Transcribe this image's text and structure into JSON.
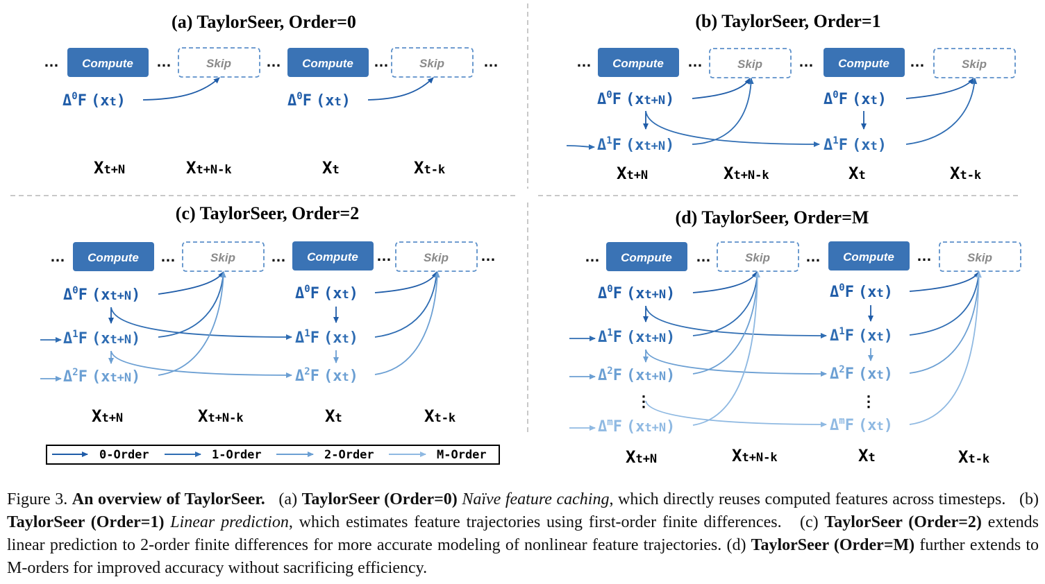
{
  "panels": {
    "a": {
      "title": "(a) TaylorSeer, Order=0"
    },
    "b": {
      "title": "(b) TaylorSeer, Order=1"
    },
    "c": {
      "title": "(c) TaylorSeer, Order=2"
    },
    "d": {
      "title": "(d) TaylorSeer, Order=M"
    }
  },
  "buttons": {
    "compute": "Compute",
    "skip": "Skip"
  },
  "dots": "…",
  "vdots": "⋮",
  "delta": {
    "sym": "Δ",
    "F": "F",
    "x": "x",
    "lp": "(",
    "rp": ")",
    "o0": "0",
    "o1": "1",
    "o2": "2",
    "om": "m",
    "sub_tN": "t+N",
    "sub_t": "t"
  },
  "timesteps": {
    "x": "X",
    "t_N": "t+N",
    "t_N_k": "t+N-k",
    "t": "t",
    "t_k": "t-k"
  },
  "legend": [
    "0-Order",
    "1-Order",
    "2-Order",
    "M-Order"
  ],
  "colors": {
    "order0": "#1f5ca8",
    "order1": "#2f6db3",
    "order2": "#6b9fd3",
    "orderM": "#8fb9e2",
    "compute_fill": "#3a73b5"
  },
  "caption": {
    "fig": "Figure 3.",
    "heading": "An overview of TaylorSeer.",
    "a_label": "(a)",
    "a_bold": "TaylorSeer (Order=0)",
    "a_ital": "Naïve feature caching",
    "a_text": ", which directly reuses computed features across timesteps.",
    "b_label": "(b)",
    "b_bold": "TaylorSeer (Order=1)",
    "b_ital": "Linear prediction",
    "b_text": ", which estimates feature trajectories using first-order finite differences.",
    "c_label": "(c)",
    "c_bold": "TaylorSeer (Order=2)",
    "c_text": " extends linear prediction to 2-order finite differences for more accurate modeling of nonlinear feature trajectories.",
    "d_label": "(d)",
    "d_bold": "TaylorSeer (Order=M)",
    "d_text": " further extends to M-orders for improved accuracy without sacrificing efficiency."
  }
}
